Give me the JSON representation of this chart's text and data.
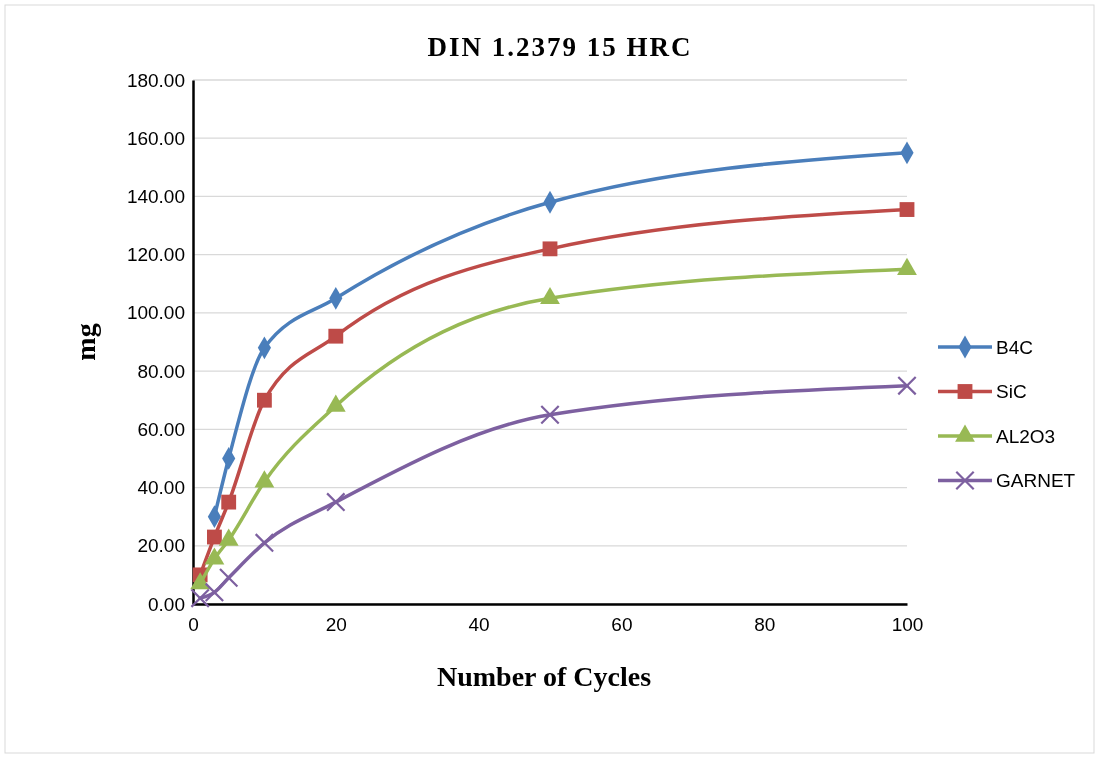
{
  "chart_data": {
    "type": "line",
    "title": "DIN 1.2379 15 HRC",
    "xlabel": "Number of Cycles",
    "ylabel": "mg",
    "xlim": [
      0,
      100
    ],
    "xticks": [
      0,
      20,
      40,
      60,
      80,
      100
    ],
    "ylim": [
      0,
      180
    ],
    "yticks": [
      {
        "value": 0,
        "label": "0.00"
      },
      {
        "value": 20,
        "label": "20.00"
      },
      {
        "value": 40,
        "label": "40.00"
      },
      {
        "value": 60,
        "label": "60.00"
      },
      {
        "value": 80,
        "label": "80.00"
      },
      {
        "value": 100,
        "label": "100.00"
      },
      {
        "value": 120,
        "label": "120.00"
      },
      {
        "value": 140,
        "label": "140.00"
      },
      {
        "value": 160,
        "label": "160.00"
      },
      {
        "value": 180,
        "label": "180.00"
      }
    ],
    "grid": "y",
    "legend": "right",
    "x": [
      1,
      3,
      5,
      10,
      20,
      50,
      100
    ],
    "series": [
      {
        "name": "B4C",
        "color": "#4a7ebb",
        "marker": "diamond",
        "values": [
          null,
          30,
          50,
          88,
          105,
          138,
          155
        ]
      },
      {
        "name": "SiC",
        "color": "#be4b48",
        "marker": "square",
        "values": [
          10,
          23,
          35,
          70,
          92,
          122,
          135.5
        ]
      },
      {
        "name": "AL2O3",
        "color": "#98b954",
        "marker": "triangle",
        "values": [
          7,
          15.5,
          22,
          42,
          68,
          105,
          115
        ]
      },
      {
        "name": "GARNET",
        "color": "#7d60a0",
        "marker": "cross",
        "values": [
          2,
          4,
          9,
          21,
          35,
          65,
          75
        ]
      }
    ]
  }
}
